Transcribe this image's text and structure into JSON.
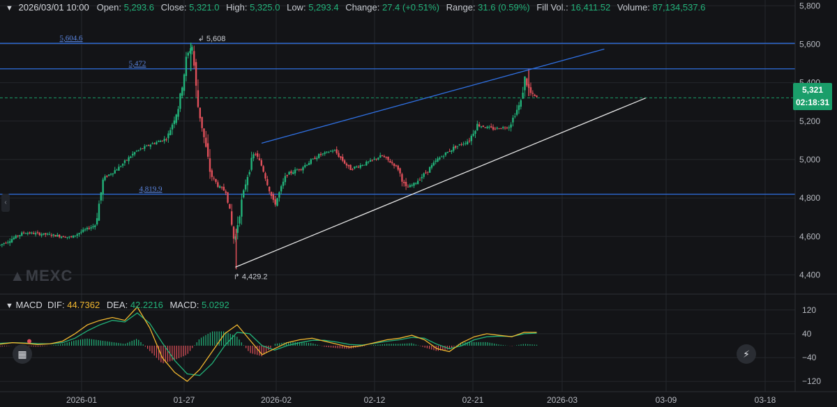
{
  "header": {
    "date": "2026/03/01 10:00",
    "open_label": "Open:",
    "open": "5,293.6",
    "close_label": "Close:",
    "close": "5,321.0",
    "high_label": "High:",
    "high": "5,325.0",
    "low_label": "Low:",
    "low": "5,293.4",
    "change_label": "Change:",
    "change": "27.4 (+0.51%)",
    "range_label": "Range:",
    "range": "31.6 (0.59%)",
    "fillvol_label": "Fill Vol.:",
    "fillvol": "16,411.52",
    "volume_label": "Volume:",
    "volume": "87,134,537.6"
  },
  "macd_header": {
    "name": "MACD",
    "dif_label": "DIF:",
    "dif": "44.7362",
    "dea_label": "DEA:",
    "dea": "42.2216",
    "macd_label": "MACD:",
    "macd": "5.0292"
  },
  "price_tag": {
    "price": "5,321",
    "countdown": "02:18:31"
  },
  "watermark": "MEXC",
  "colors": {
    "up": "#22b37a",
    "down": "#e0505a",
    "line_blue": "#2f6fe0",
    "trend_white": "#e6e6e6",
    "dif": "#f2b830",
    "dea": "#22b37a"
  },
  "chart_data": [
    {
      "type": "candlestick",
      "x_ticks": [
        "2026-01",
        "01-27",
        "2026-02",
        "02-12",
        "02-21",
        "2026-03",
        "03-09",
        "03-18"
      ],
      "y_ticks": [
        4400,
        4600,
        4800,
        5000,
        5200,
        5400,
        5600,
        5800
      ],
      "ylim": [
        4300,
        5830
      ],
      "grid": true,
      "current_price": 5321,
      "annotations": [
        {
          "text": "5,608",
          "kind": "high-marker",
          "value": 5608
        },
        {
          "text": "4,429.2",
          "kind": "low-marker",
          "value": 4429.2
        }
      ],
      "horizontal_lines": [
        {
          "label": "5,604.6",
          "value": 5604.6
        },
        {
          "label": "5,472",
          "value": 5472
        },
        {
          "label": "4,819.9",
          "value": 4819.9
        }
      ],
      "trendlines": [
        {
          "name": "upper",
          "from": [
            0.329,
            5085
          ],
          "to": [
            0.76,
            5575
          ]
        },
        {
          "name": "lower",
          "from": [
            0.296,
            4440
          ],
          "to": [
            0.812,
            5320
          ]
        }
      ],
      "close_path": [
        [
          0.0,
          4555
        ],
        [
          0.03,
          4620
        ],
        [
          0.06,
          4610
        ],
        [
          0.09,
          4595
        ],
        [
          0.1,
          4620
        ],
        [
          0.12,
          4660
        ],
        [
          0.13,
          4900
        ],
        [
          0.15,
          4960
        ],
        [
          0.17,
          5040
        ],
        [
          0.19,
          5080
        ],
        [
          0.21,
          5110
        ],
        [
          0.225,
          5280
        ],
        [
          0.235,
          5540
        ],
        [
          0.242,
          5590
        ],
        [
          0.248,
          5300
        ],
        [
          0.255,
          5150
        ],
        [
          0.265,
          4920
        ],
        [
          0.275,
          4860
        ],
        [
          0.285,
          4830
        ],
        [
          0.295,
          4560
        ],
        [
          0.3,
          4700
        ],
        [
          0.31,
          4900
        ],
        [
          0.32,
          5040
        ],
        [
          0.33,
          4960
        ],
        [
          0.345,
          4760
        ],
        [
          0.36,
          4920
        ],
        [
          0.38,
          4960
        ],
        [
          0.4,
          5020
        ],
        [
          0.42,
          5050
        ],
        [
          0.44,
          4950
        ],
        [
          0.46,
          4980
        ],
        [
          0.48,
          5020
        ],
        [
          0.5,
          4960
        ],
        [
          0.51,
          4850
        ],
        [
          0.52,
          4870
        ],
        [
          0.535,
          4930
        ],
        [
          0.55,
          5000
        ],
        [
          0.57,
          5060
        ],
        [
          0.59,
          5100
        ],
        [
          0.6,
          5180
        ],
        [
          0.62,
          5160
        ],
        [
          0.64,
          5170
        ],
        [
          0.655,
          5300
        ],
        [
          0.66,
          5420
        ],
        [
          0.668,
          5340
        ],
        [
          0.675,
          5321
        ]
      ]
    },
    {
      "type": "macd",
      "y_ticks": [
        120,
        40,
        -40,
        -120
      ],
      "ylim": [
        -150,
        150
      ],
      "series": [
        {
          "name": "DIF",
          "values": [
            5,
            10,
            8,
            4,
            6,
            15,
            40,
            70,
            85,
            95,
            85,
            130,
            60,
            -40,
            -90,
            -120,
            -80,
            -20,
            40,
            70,
            20,
            -30,
            -10,
            10,
            20,
            25,
            15,
            5,
            -5,
            0,
            10,
            20,
            25,
            35,
            20,
            -10,
            -20,
            10,
            30,
            40,
            35,
            30,
            45,
            44.7
          ]
        },
        {
          "name": "DEA",
          "values": [
            8,
            10,
            9,
            7,
            6,
            10,
            25,
            50,
            70,
            85,
            80,
            110,
            75,
            10,
            -50,
            -95,
            -100,
            -60,
            0,
            45,
            40,
            0,
            -15,
            0,
            10,
            18,
            18,
            12,
            4,
            2,
            8,
            15,
            20,
            28,
            25,
            5,
            -10,
            0,
            20,
            30,
            32,
            31,
            40,
            42.2
          ]
        }
      ]
    }
  ]
}
